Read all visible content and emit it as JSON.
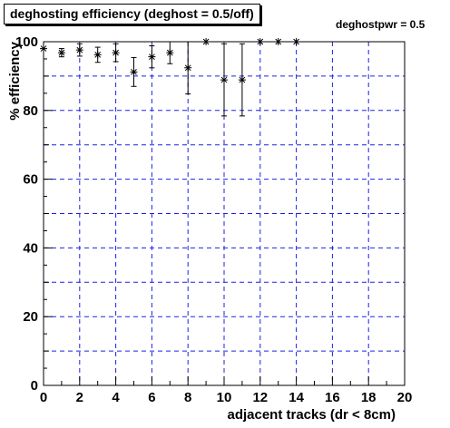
{
  "chart_data": {
    "type": "scatter",
    "title": "deghosting efficiency (deghost = 0.5/off)",
    "annotation": "deghostpwr = 0.5",
    "xlabel": "adjacent tracks (dr < 8cm)",
    "ylabel": "% efficiency",
    "xlim": [
      0,
      20
    ],
    "ylim": [
      0,
      100
    ],
    "x_ticks": [
      0,
      2,
      4,
      6,
      8,
      10,
      12,
      14,
      16,
      18,
      20
    ],
    "y_ticks": [
      0,
      20,
      40,
      60,
      80,
      100
    ],
    "grid": true,
    "marker": "asterisk",
    "points": [
      {
        "x": 0,
        "y": 98,
        "err": 0
      },
      {
        "x": 1,
        "y": 96.8,
        "err": 1.2
      },
      {
        "x": 2,
        "y": 97.6,
        "err": 1.8
      },
      {
        "x": 3,
        "y": 96.2,
        "err": 2.2
      },
      {
        "x": 4,
        "y": 96.8,
        "err": 2.6
      },
      {
        "x": 5,
        "y": 91.2,
        "err": 4.2
      },
      {
        "x": 6,
        "y": 95.6,
        "err": 3.2
      },
      {
        "x": 7,
        "y": 96.8,
        "err": 3.2
      },
      {
        "x": 8,
        "y": 92.4,
        "err": 7.6
      },
      {
        "x": 9,
        "y": 100,
        "err": 0
      },
      {
        "x": 10,
        "y": 88.9,
        "err": 10.5
      },
      {
        "x": 11,
        "y": 88.9,
        "err": 10.5
      },
      {
        "x": 12,
        "y": 100,
        "err": 0
      },
      {
        "x": 13,
        "y": 100,
        "err": 0
      },
      {
        "x": 14,
        "y": 100,
        "err": 0
      }
    ]
  }
}
